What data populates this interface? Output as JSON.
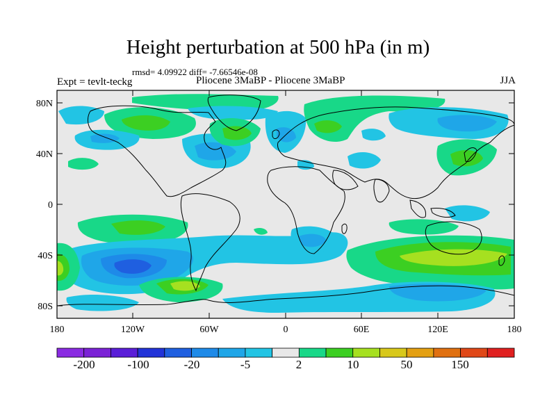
{
  "title": "Height perturbation at 500 hPa (in m)",
  "stats": "rmsd= 4.09922 diff= -7.66546e-08",
  "expt_label": "Expt = tevlt-teckg",
  "comparison": "Pliocene   3MaBP - Pliocene   3MaBP",
  "season": "JJA",
  "lat_ticks": [
    "80N",
    "40N",
    "0",
    "40S",
    "80S"
  ],
  "lon_ticks": [
    "180",
    "120W",
    "60W",
    "0",
    "60E",
    "120E",
    "180"
  ],
  "colorbar": {
    "colors": [
      "#8a2be2",
      "#7b22d6",
      "#5a1ed8",
      "#2233d8",
      "#1f5fe0",
      "#1e8ae8",
      "#1fa6e8",
      "#22c4e4",
      "#e8e8e8",
      "#18d888",
      "#3ccf22",
      "#a6e020",
      "#d8c81a",
      "#e4a012",
      "#e07010",
      "#e04818",
      "#e02020"
    ],
    "labels": [
      "-200",
      "-100",
      "-20",
      "-5",
      "2",
      "10",
      "50",
      "150"
    ]
  },
  "colors": {
    "land_background": "#e8e8e8",
    "neg_light": "#22c4e4",
    "neg_medium": "#1fa6e8",
    "neg_strong": "#1e8ae8",
    "neg_deep": "#1f5fe0",
    "pos_light": "#18d888",
    "pos_medium": "#3ccf22",
    "pos_strong": "#a6e020"
  }
}
